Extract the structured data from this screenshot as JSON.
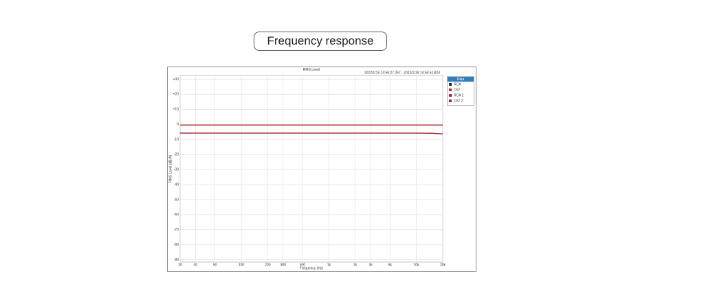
{
  "header": {
    "button": "Frequency response"
  },
  "chart_data": {
    "type": "line",
    "title": "RMS Level",
    "subtitle": "2022/1/19 14:56:27.267 -   2022/1/19 14:56:52.824",
    "x_label": "Frequency (Hz)",
    "y_label": "RMS Level (dBrA)",
    "x": [
      20,
      100,
      1000,
      10000,
      15000,
      20000
    ],
    "series": [
      {
        "name": "RCA",
        "color": "#1a2a5a",
        "values": [
          -0.5,
          -0.5,
          -0.5,
          -0.5,
          -0.5,
          -0.5
        ]
      },
      {
        "name": "Ch2",
        "color": "#d42a2a",
        "values": [
          -0.5,
          -0.5,
          -0.5,
          -0.5,
          -0.5,
          -0.5
        ]
      },
      {
        "name": "RCA 2",
        "color": "#8a2a6a",
        "values": [
          -5.8,
          -5.8,
          -5.8,
          -5.8,
          -5.9,
          -6.3
        ]
      },
      {
        "name": "Ch2 2",
        "color": "#a0302a",
        "values": [
          -5.8,
          -5.8,
          -5.8,
          -5.8,
          -5.9,
          -6.3
        ]
      }
    ],
    "xscale": "log",
    "xlim": [
      20,
      20000
    ],
    "xticks": [
      20,
      30,
      50,
      100,
      200,
      300,
      500,
      {
        "value": 1000,
        "label": "1k"
      },
      {
        "value": 2000,
        "label": "2k"
      },
      {
        "value": 3000,
        "label": "3k"
      },
      {
        "value": 5000,
        "label": "5k"
      },
      {
        "value": 10000,
        "label": "10k"
      },
      {
        "value": 20000,
        "label": "20k"
      }
    ],
    "ylim": [
      -91.5,
      32.5
    ],
    "yticks": [
      {
        "value": 30,
        "label": "+30"
      },
      {
        "value": 20,
        "label": "+20"
      },
      {
        "value": 10,
        "label": "+10"
      },
      0,
      -10,
      -20,
      -30,
      -40,
      -50,
      -60,
      -70,
      -80,
      -90
    ],
    "grid": true,
    "legend_title": "Data",
    "legend": "right"
  }
}
